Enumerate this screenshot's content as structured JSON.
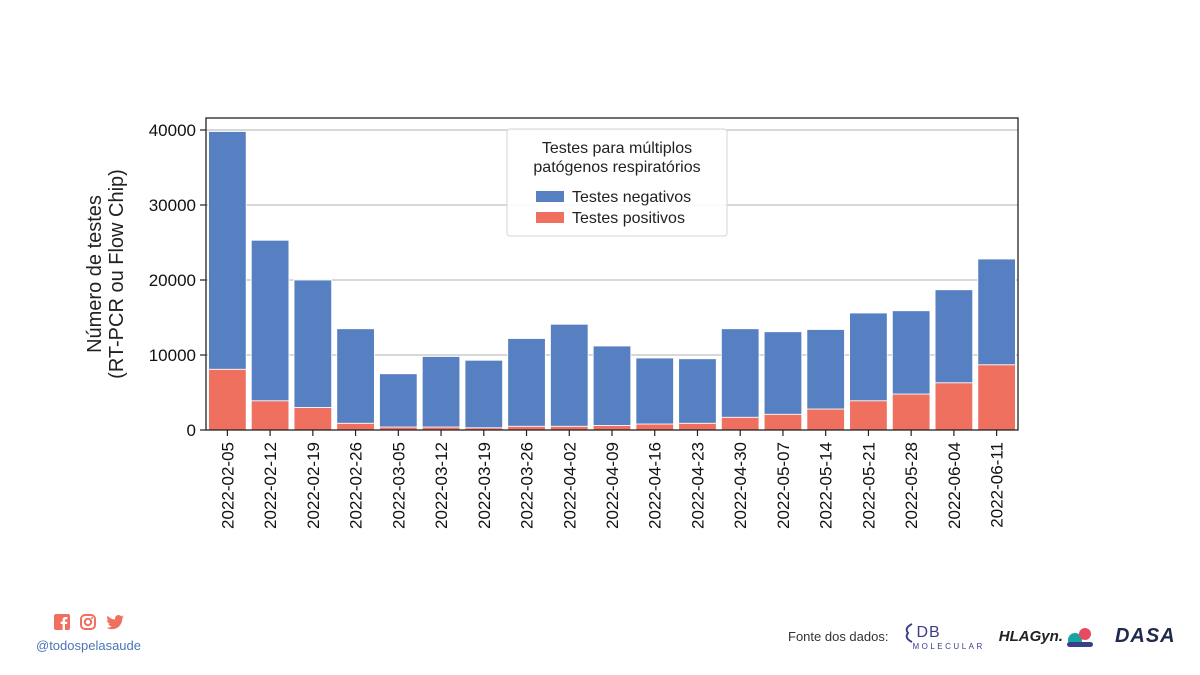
{
  "chart_data": {
    "type": "bar",
    "stacked": true,
    "categories": [
      "2022-02-05",
      "2022-02-12",
      "2022-02-19",
      "2022-02-26",
      "2022-03-05",
      "2022-03-12",
      "2022-03-19",
      "2022-03-26",
      "2022-04-02",
      "2022-04-09",
      "2022-04-16",
      "2022-04-23",
      "2022-04-30",
      "2022-05-07",
      "2022-05-14",
      "2022-05-21",
      "2022-05-28",
      "2022-06-04",
      "2022-06-11"
    ],
    "series": [
      {
        "name": "Testes positivos",
        "color": "#f07060",
        "values": [
          8100,
          3900,
          3000,
          900,
          400,
          400,
          300,
          500,
          500,
          600,
          800,
          900,
          1700,
          2100,
          2800,
          3900,
          4800,
          6300,
          8700
        ]
      },
      {
        "name": "Testes negativos",
        "color": "#5680c1",
        "values": [
          31700,
          21400,
          17000,
          12600,
          7100,
          9400,
          9000,
          11700,
          13600,
          10600,
          8800,
          8600,
          11800,
          11000,
          10600,
          11700,
          11100,
          12400,
          14100
        ]
      }
    ],
    "totals": [
      39800,
      25300,
      20000,
      13500,
      7500,
      9800,
      9300,
      12200,
      14100,
      11200,
      9600,
      9500,
      13500,
      13100,
      13400,
      15600,
      15900,
      18700,
      22800
    ],
    "ylabel": [
      "Número de testes",
      "(RT-PCR ou Flow Chip)"
    ],
    "xlabel": "",
    "ylim": [
      0,
      40000
    ],
    "yticks": [
      0,
      10000,
      20000,
      30000,
      40000
    ],
    "grid": "y",
    "legend": {
      "title": [
        "Testes para múltiplos",
        "patógenos respiratórios"
      ],
      "entries": [
        "Testes negativos",
        "Testes positivos"
      ],
      "placement": "top-center"
    }
  },
  "footer": {
    "social_icons": [
      "facebook-icon",
      "instagram-icon",
      "twitter-icon"
    ],
    "handle": "@todospelasaude",
    "source_label": "Fonte dos dados:",
    "logos": {
      "db_main": "DB",
      "db_sub": "MOLECULAR",
      "hla": "HLAGyn.",
      "dasa": "DASA"
    },
    "social_color": "#f07060",
    "handle_color": "#4a74b8"
  }
}
